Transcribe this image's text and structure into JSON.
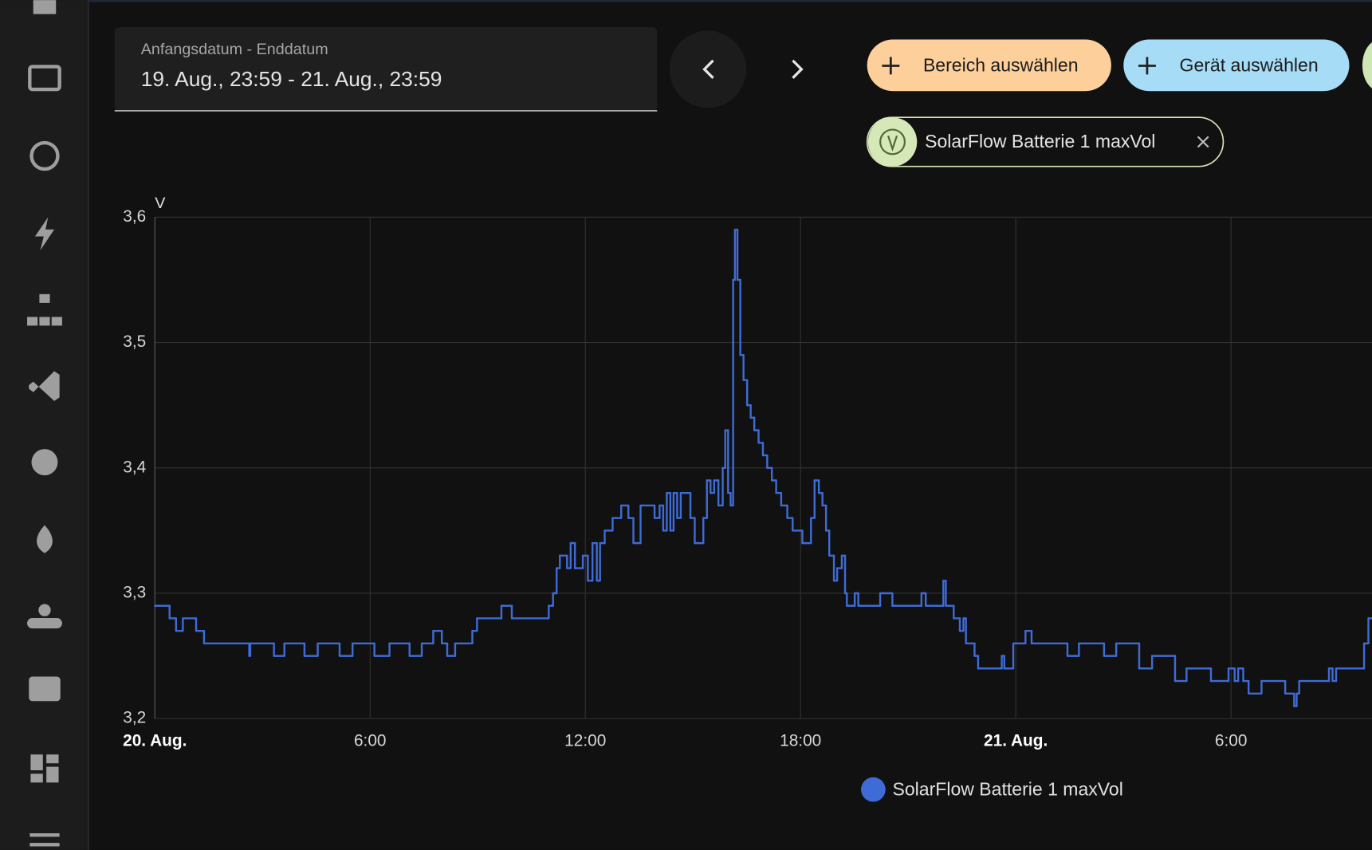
{
  "header": {
    "date_label": "Anfangsdatum - Enddatum",
    "date_range": "19. Aug., 23:59 - 21. Aug., 23:59",
    "area_button": "Bereich auswählen",
    "device_button": "Gerät auswählen",
    "chip": "SolarFlow Batterie 1 maxVol"
  },
  "chart_data": {
    "type": "step-line",
    "y_label": "V",
    "xlim": [
      0,
      33.93
    ],
    "xticks": [
      {
        "value": 0,
        "label": "20. Aug."
      },
      {
        "value": 6,
        "label": "6:00"
      },
      {
        "value": 12,
        "label": "12:00"
      },
      {
        "value": 18,
        "label": "18:00"
      },
      {
        "value": 24,
        "label": "21. Aug."
      },
      {
        "value": 30,
        "label": "6:00"
      }
    ],
    "ylim": [
      3.2,
      3.6
    ],
    "yticks": [
      {
        "value": 3.2,
        "label": "3,2"
      },
      {
        "value": 3.3,
        "label": "3,3"
      },
      {
        "value": 3.4,
        "label": "3,4"
      },
      {
        "value": 3.5,
        "label": "3,5"
      },
      {
        "value": 3.6,
        "label": "3,6"
      }
    ],
    "grid": true,
    "legend": "bottom",
    "x": [
      0,
      0.41,
      0.59,
      0.78,
      1.15,
      1.37,
      2.63,
      2.66,
      3.32,
      3.61,
      4.17,
      4.54,
      5.15,
      5.51,
      6.12,
      6.54,
      7.1,
      7.44,
      7.76,
      8.0,
      8.15,
      8.37,
      8.85,
      8.98,
      9.66,
      9.95,
      10.98,
      11.1,
      11.2,
      11.29,
      11.49,
      11.59,
      11.71,
      11.93,
      12.07,
      12.2,
      12.32,
      12.41,
      12.54,
      12.76,
      13.0,
      13.2,
      13.34,
      13.54,
      13.93,
      14.07,
      14.17,
      14.27,
      14.37,
      14.46,
      14.56,
      14.66,
      14.93,
      15.05,
      15.29,
      15.39,
      15.49,
      15.59,
      15.71,
      15.83,
      15.9,
      15.98,
      16.05,
      16.12,
      16.17,
      16.24,
      16.32,
      16.41,
      16.51,
      16.61,
      16.71,
      16.83,
      16.95,
      17.07,
      17.2,
      17.32,
      17.46,
      17.63,
      17.78,
      18.05,
      18.29,
      18.39,
      18.51,
      18.61,
      18.71,
      18.8,
      18.93,
      19.02,
      19.15,
      19.24,
      19.29,
      19.51,
      19.61,
      20.22,
      20.56,
      21.37,
      21.49,
      21.98,
      22.05,
      22.27,
      22.44,
      22.54,
      22.61,
      22.85,
      22.95,
      23.61,
      23.68,
      23.93,
      24.27,
      24.44,
      25.44,
      25.76,
      26.46,
      26.8,
      27.44,
      27.8,
      28.44,
      28.76,
      29.44,
      29.93,
      30.1,
      30.2,
      30.34,
      30.49,
      30.85,
      31.51,
      31.76,
      31.83,
      31.9,
      32.73,
      32.83,
      32.93,
      33.71,
      33.83
    ],
    "series": [
      {
        "name": "SolarFlow Batterie 1 maxVol",
        "color": "#3f6bd6",
        "values": [
          3.29,
          3.28,
          3.27,
          3.28,
          3.27,
          3.26,
          3.25,
          3.26,
          3.25,
          3.26,
          3.25,
          3.26,
          3.25,
          3.26,
          3.25,
          3.26,
          3.25,
          3.26,
          3.27,
          3.26,
          3.25,
          3.26,
          3.27,
          3.28,
          3.29,
          3.28,
          3.29,
          3.3,
          3.32,
          3.33,
          3.32,
          3.34,
          3.32,
          3.33,
          3.31,
          3.34,
          3.31,
          3.34,
          3.35,
          3.36,
          3.37,
          3.36,
          3.34,
          3.37,
          3.36,
          3.37,
          3.35,
          3.38,
          3.35,
          3.38,
          3.36,
          3.38,
          3.36,
          3.34,
          3.36,
          3.39,
          3.38,
          3.39,
          3.37,
          3.4,
          3.43,
          3.38,
          3.37,
          3.55,
          3.59,
          3.55,
          3.49,
          3.47,
          3.45,
          3.44,
          3.43,
          3.42,
          3.41,
          3.4,
          3.39,
          3.38,
          3.37,
          3.36,
          3.35,
          3.34,
          3.36,
          3.39,
          3.38,
          3.37,
          3.35,
          3.33,
          3.31,
          3.32,
          3.33,
          3.3,
          3.29,
          3.3,
          3.29,
          3.3,
          3.29,
          3.3,
          3.29,
          3.31,
          3.29,
          3.28,
          3.27,
          3.28,
          3.26,
          3.25,
          3.24,
          3.25,
          3.24,
          3.26,
          3.27,
          3.26,
          3.25,
          3.26,
          3.25,
          3.26,
          3.24,
          3.25,
          3.23,
          3.24,
          3.23,
          3.24,
          3.23,
          3.24,
          3.23,
          3.22,
          3.23,
          3.22,
          3.21,
          3.22,
          3.23,
          3.24,
          3.23,
          3.24,
          3.26,
          3.28
        ]
      }
    ]
  }
}
